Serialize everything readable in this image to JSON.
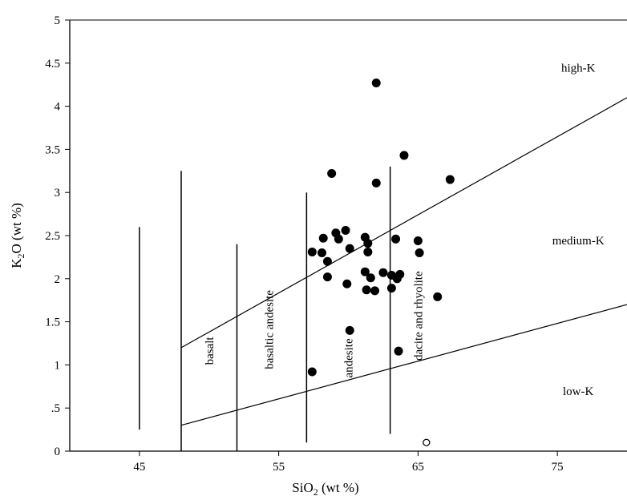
{
  "chart_data": {
    "type": "scatter",
    "title": "",
    "xlabel": {
      "main": "SiO",
      "sub": "2",
      "rest": " (wt %)"
    },
    "ylabel": {
      "main": "K",
      "sub": "2",
      "rest": "O (wt %)"
    },
    "xlim": [
      40,
      80
    ],
    "ylim": [
      0,
      5
    ],
    "x_ticks": [
      {
        "value": 45,
        "label": "45"
      },
      {
        "value": 55,
        "label": "55"
      },
      {
        "value": 65,
        "label": "65"
      },
      {
        "value": 75,
        "label": "75"
      }
    ],
    "y_ticks": [
      {
        "value": 0,
        "label": "0"
      },
      {
        "value": 0.5,
        "label": ".5"
      },
      {
        "value": 1,
        "label": "1"
      },
      {
        "value": 1.5,
        "label": "1.5"
      },
      {
        "value": 2,
        "label": "2"
      },
      {
        "value": 2.5,
        "label": "2.5"
      },
      {
        "value": 3,
        "label": "3"
      },
      {
        "value": 3.5,
        "label": "3.5"
      },
      {
        "value": 4,
        "label": "4"
      },
      {
        "value": 4.5,
        "label": "4.5"
      },
      {
        "value": 5,
        "label": "5"
      }
    ],
    "boundary_lines": [
      {
        "x": [
          48,
          80
        ],
        "y": [
          1.2,
          4.1
        ]
      },
      {
        "x": [
          48,
          80
        ],
        "y": [
          0.3,
          1.7
        ]
      }
    ],
    "rock_dividers": [
      {
        "x": 45,
        "y": [
          0.25,
          2.6
        ]
      },
      {
        "x": 48,
        "y": [
          0,
          3.25
        ]
      },
      {
        "x": 52,
        "y": [
          0,
          2.4
        ]
      },
      {
        "x": 57,
        "y": [
          0.1,
          3.0
        ]
      },
      {
        "x": 63,
        "y": [
          0.2,
          3.3
        ]
      }
    ],
    "rock_labels": [
      {
        "text": "basalt",
        "x": 50.3,
        "y": 1.0
      },
      {
        "text": "basaltic andesite",
        "x": 54.6,
        "y": 0.95
      },
      {
        "text": "andesite",
        "x": 60.3,
        "y": 0.85
      },
      {
        "text": "dacite and rhyolite",
        "x": 65.3,
        "y": 1.05
      }
    ],
    "series_labels": [
      {
        "text": "high-K",
        "x": 76.5,
        "y": 4.4
      },
      {
        "text": "medium-K",
        "x": 76.5,
        "y": 2.4
      },
      {
        "text": "low-K",
        "x": 76.5,
        "y": 0.65
      }
    ],
    "points": [
      {
        "x": 62.0,
        "y": 4.27
      },
      {
        "x": 64.0,
        "y": 3.43
      },
      {
        "x": 58.8,
        "y": 3.22
      },
      {
        "x": 67.3,
        "y": 3.15
      },
      {
        "x": 62.0,
        "y": 3.11
      },
      {
        "x": 59.8,
        "y": 2.56
      },
      {
        "x": 59.1,
        "y": 2.53
      },
      {
        "x": 61.2,
        "y": 2.48
      },
      {
        "x": 58.2,
        "y": 2.47
      },
      {
        "x": 59.3,
        "y": 2.46
      },
      {
        "x": 63.4,
        "y": 2.46
      },
      {
        "x": 65.0,
        "y": 2.44
      },
      {
        "x": 61.4,
        "y": 2.41
      },
      {
        "x": 60.1,
        "y": 2.35
      },
      {
        "x": 57.4,
        "y": 2.31
      },
      {
        "x": 58.1,
        "y": 2.3
      },
      {
        "x": 61.4,
        "y": 2.31
      },
      {
        "x": 65.1,
        "y": 2.3
      },
      {
        "x": 58.5,
        "y": 2.2
      },
      {
        "x": 61.2,
        "y": 2.08
      },
      {
        "x": 62.5,
        "y": 2.07
      },
      {
        "x": 63.1,
        "y": 2.04
      },
      {
        "x": 63.7,
        "y": 2.05
      },
      {
        "x": 58.5,
        "y": 2.02
      },
      {
        "x": 61.6,
        "y": 2.01
      },
      {
        "x": 63.5,
        "y": 2.0
      },
      {
        "x": 59.9,
        "y": 1.94
      },
      {
        "x": 63.1,
        "y": 1.89
      },
      {
        "x": 61.3,
        "y": 1.87
      },
      {
        "x": 61.9,
        "y": 1.86
      },
      {
        "x": 66.4,
        "y": 1.79
      },
      {
        "x": 60.1,
        "y": 1.4
      },
      {
        "x": 63.6,
        "y": 1.16
      },
      {
        "x": 57.4,
        "y": 0.92
      }
    ],
    "open_points": [
      {
        "x": 65.6,
        "y": 0.1
      }
    ],
    "grid": false,
    "legend": "none"
  }
}
